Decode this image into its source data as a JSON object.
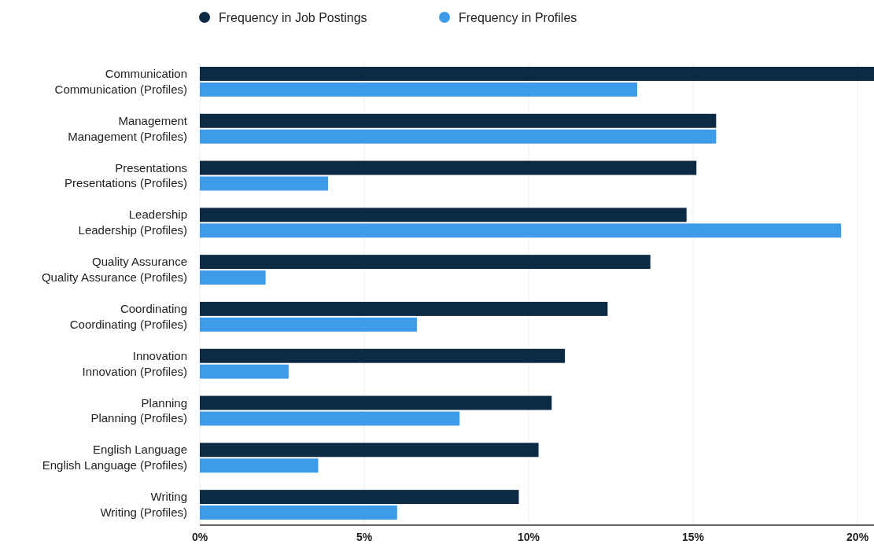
{
  "chart_data": {
    "type": "bar",
    "orientation": "horizontal",
    "categories": [
      "Communication",
      "Communication (Profiles)",
      "Management",
      "Management (Profiles)",
      "Presentations",
      "Presentations (Profiles)",
      "Leadership",
      "Leadership (Profiles)",
      "Quality Assurance",
      "Quality Assurance (Profiles)",
      "Coordinating",
      "Coordinating (Profiles)",
      "Innovation",
      "Innovation (Profiles)",
      "Planning",
      "Planning (Profiles)",
      "English Language",
      "English Language (Profiles)",
      "Writing",
      "Writing (Profiles)"
    ],
    "series": [
      {
        "name": "Frequency in Job Postings",
        "color": "#0d2a45",
        "values": [
          20.5,
          null,
          15.7,
          null,
          15.1,
          null,
          14.8,
          null,
          13.7,
          null,
          12.4,
          null,
          11.1,
          null,
          10.7,
          null,
          10.3,
          null,
          9.7,
          null
        ]
      },
      {
        "name": "Frequency in Profiles",
        "color": "#3d9be9",
        "values": [
          null,
          13.3,
          null,
          15.7,
          null,
          3.9,
          null,
          19.5,
          null,
          2.0,
          null,
          6.6,
          null,
          2.7,
          null,
          7.9,
          null,
          3.6,
          null,
          6.0
        ]
      }
    ],
    "xlim": [
      0,
      20.5
    ],
    "xticks": [
      {
        "value": 0,
        "label": "0%"
      },
      {
        "value": 5,
        "label": "5%"
      },
      {
        "value": 10,
        "label": "10%"
      },
      {
        "value": 15,
        "label": "15%"
      },
      {
        "value": 20,
        "label": "20%"
      }
    ],
    "grid": "x",
    "legend": "top"
  }
}
